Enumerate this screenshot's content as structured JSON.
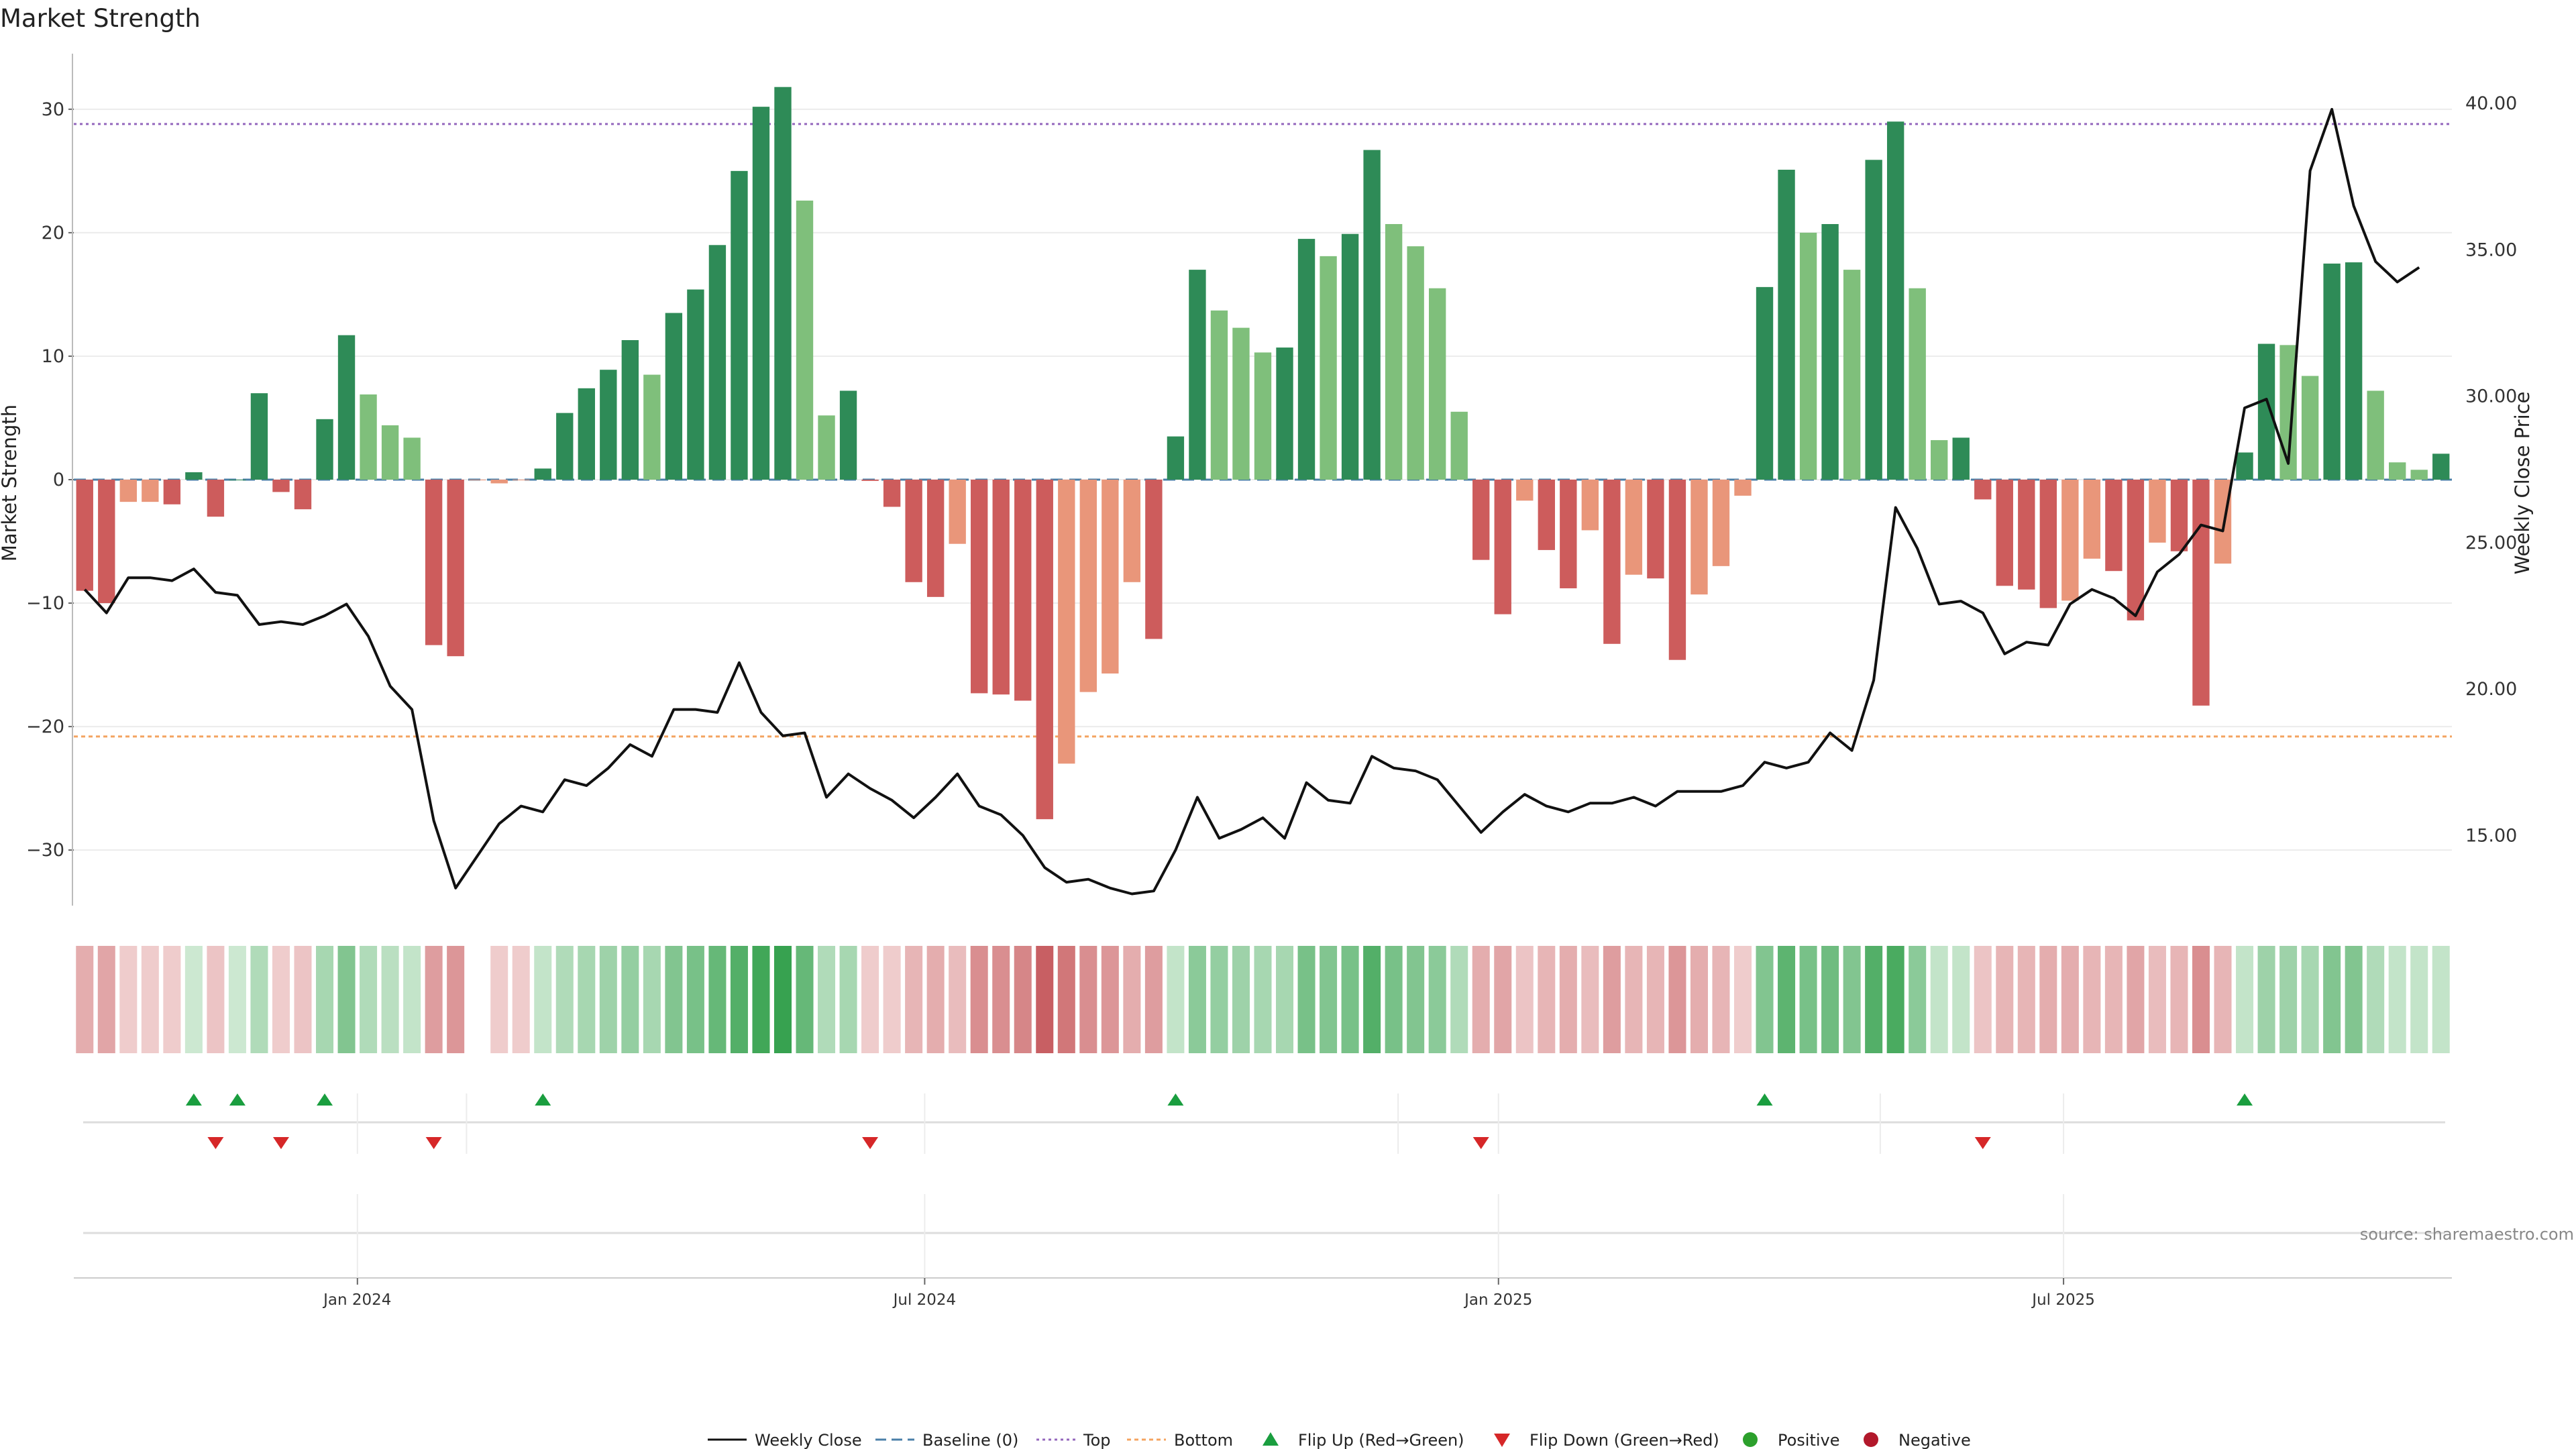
{
  "chart_data": {
    "type": "bar",
    "title": "Market Strength",
    "ylabel": "Market Strength",
    "y2label": "Weekly Close Price",
    "ylim": [
      -34.5,
      34.5
    ],
    "y2lim": [
      12.6,
      41.7
    ],
    "yticks": [
      -30,
      -20,
      -10,
      0,
      10,
      20,
      30
    ],
    "ytick_labels": [
      "−30",
      "−20",
      "−10",
      "0",
      "10",
      "20",
      "30"
    ],
    "y2ticks": [
      15,
      20,
      25,
      30,
      35,
      40
    ],
    "y2tick_labels": [
      "15.00",
      "20.00",
      "25.00",
      "30.00",
      "35.00",
      "40.00"
    ],
    "top_level": 28.8,
    "bottom_level": -20.8,
    "xticks": [
      {
        "label": "Jan 2024",
        "index": 12.5
      },
      {
        "label": "Jul 2024",
        "index": 38.5
      },
      {
        "label": "Jan 2025",
        "index": 64.8
      },
      {
        "label": "Jul 2025",
        "index": 90.7
      }
    ],
    "strength": [
      -9,
      -10,
      -1.8,
      -1.8,
      -2,
      0.6,
      -3,
      0,
      7,
      -1,
      -2.4,
      4.9,
      11.7,
      6.9,
      4.4,
      3.4,
      -13.4,
      -14.3,
      0,
      -0.3,
      0,
      0.9,
      5.4,
      7.4,
      8.9,
      11.3,
      8.5,
      13.5,
      15.4,
      19,
      25,
      30.2,
      31.8,
      22.6,
      5.2,
      7.2,
      -0.1,
      -2.2,
      -8.3,
      -9.5,
      -5.2,
      -17.3,
      -17.4,
      -17.9,
      -27.5,
      -23,
      -17.2,
      -15.7,
      -8.3,
      -12.9,
      3.5,
      17,
      13.7,
      12.3,
      10.3,
      10.7,
      19.5,
      18.1,
      19.9,
      26.7,
      20.7,
      18.9,
      15.5,
      5.5,
      -6.5,
      -10.9,
      -1.7,
      -5.7,
      -8.8,
      -4.1,
      -13.3,
      -7.7,
      -8,
      -14.6,
      -9.3,
      -7,
      -1.3,
      15.6,
      25.1,
      20,
      20.7,
      17,
      25.9,
      29,
      15.5,
      3.2,
      3.4,
      -1.6,
      -8.6,
      -8.9,
      -10.4,
      -9.8,
      -6.4,
      -7.4,
      -11.4,
      -5.1,
      -5.8,
      -18.3,
      -6.8,
      2.2,
      11,
      10.9,
      8.4,
      17.5,
      17.6,
      7.2,
      1.4,
      0.8,
      2.1
    ],
    "bar_tone": [
      "dr",
      "dr",
      "lr",
      "lr",
      "dr",
      "dg",
      "dr",
      "dg",
      "dg",
      "dr",
      "dr",
      "dg",
      "dg",
      "lg",
      "lg",
      "lg",
      "dr",
      "dr",
      "lr",
      "lr",
      "lr",
      "dg",
      "dg",
      "dg",
      "dg",
      "dg",
      "lg",
      "dg",
      "dg",
      "dg",
      "dg",
      "dg",
      "dg",
      "lg",
      "lg",
      "dg",
      "dr",
      "dr",
      "dr",
      "dr",
      "lr",
      "dr",
      "dr",
      "dr",
      "dr",
      "lr",
      "lr",
      "lr",
      "lr",
      "dr",
      "dg",
      "dg",
      "lg",
      "lg",
      "lg",
      "dg",
      "dg",
      "lg",
      "dg",
      "dg",
      "lg",
      "lg",
      "lg",
      "lg",
      "dr",
      "dr",
      "lr",
      "dr",
      "dr",
      "lr",
      "dr",
      "lr",
      "dr",
      "dr",
      "lr",
      "lr",
      "lr",
      "dg",
      "dg",
      "lg",
      "dg",
      "lg",
      "dg",
      "dg",
      "lg",
      "lg",
      "dg",
      "dr",
      "dr",
      "dr",
      "dr",
      "lr",
      "lr",
      "dr",
      "dr",
      "lr",
      "dr",
      "dr",
      "lr",
      "dg",
      "dg",
      "lg",
      "lg",
      "dg",
      "dg",
      "lg",
      "lg",
      "lg",
      "dg"
    ],
    "heat": [
      -0.35,
      -0.4,
      -0.15,
      -0.15,
      -0.15,
      0.15,
      -0.2,
      0.15,
      0.3,
      -0.15,
      -0.2,
      0.35,
      0.55,
      0.3,
      0.25,
      0.2,
      -0.45,
      -0.5,
      null,
      -0.15,
      -0.15,
      0.2,
      0.3,
      0.35,
      0.4,
      0.45,
      0.35,
      0.55,
      0.6,
      0.7,
      0.8,
      0.9,
      0.95,
      0.7,
      0.3,
      0.35,
      -0.15,
      -0.15,
      -0.3,
      -0.35,
      -0.25,
      -0.55,
      -0.55,
      -0.6,
      -0.85,
      -0.7,
      -0.55,
      -0.5,
      -0.35,
      -0.45,
      0.2,
      0.5,
      0.45,
      0.4,
      0.35,
      0.35,
      0.6,
      0.55,
      0.6,
      0.8,
      0.6,
      0.55,
      0.5,
      0.3,
      -0.35,
      -0.4,
      -0.2,
      -0.3,
      -0.35,
      -0.25,
      -0.45,
      -0.3,
      -0.3,
      -0.5,
      -0.35,
      -0.3,
      -0.15,
      0.55,
      0.75,
      0.6,
      0.65,
      0.55,
      0.8,
      0.85,
      0.5,
      0.2,
      0.2,
      -0.2,
      -0.3,
      -0.3,
      -0.35,
      -0.35,
      -0.3,
      -0.3,
      -0.4,
      -0.25,
      -0.3,
      -0.55,
      -0.3,
      0.2,
      0.4,
      0.4,
      0.35,
      0.55,
      0.55,
      0.3,
      0.2,
      0.2,
      0.2
    ],
    "close": [
      23.4,
      22.6,
      23.8,
      23.8,
      23.7,
      24.1,
      23.3,
      23.2,
      22.2,
      22.3,
      22.2,
      22.5,
      22.9,
      21.8,
      20.1,
      19.3,
      15.5,
      13.2,
      14.3,
      15.4,
      16.0,
      15.8,
      16.9,
      16.7,
      17.3,
      18.1,
      17.7,
      19.3,
      19.3,
      19.2,
      20.9,
      19.2,
      18.4,
      18.5,
      16.3,
      17.1,
      16.6,
      16.2,
      15.6,
      16.3,
      17.1,
      16.0,
      15.7,
      15.0,
      13.9,
      13.4,
      13.5,
      13.2,
      13.0,
      13.1,
      14.5,
      16.3,
      14.9,
      15.2,
      15.6,
      14.9,
      16.8,
      16.2,
      16.1,
      17.7,
      17.3,
      17.2,
      16.9,
      16.0,
      15.1,
      15.8,
      16.4,
      16.0,
      15.8,
      16.1,
      16.1,
      16.3,
      16.0,
      16.5,
      16.5,
      16.5,
      16.7,
      17.5,
      17.3,
      17.5,
      18.5,
      17.9,
      20.3,
      26.2,
      24.8,
      22.9,
      23.0,
      22.6,
      21.2,
      21.6,
      21.5,
      22.9,
      23.4,
      23.1,
      22.5,
      24.0,
      24.6,
      25.6,
      25.4,
      29.6,
      29.9,
      27.7,
      37.7,
      39.8,
      36.5,
      34.6,
      33.9,
      34.4
    ],
    "flip_up": [
      5,
      7,
      11,
      21,
      50,
      77,
      99
    ],
    "flip_down": [
      6,
      9,
      16,
      36,
      64,
      87
    ],
    "legend": [
      "Weekly Close",
      "Baseline (0)",
      "Top",
      "Bottom",
      "Flip Up (Red→Green)",
      "Flip Down (Green→Red)",
      "Positive",
      "Negative"
    ],
    "source_note": "source: sharemaestro.com",
    "colors": {
      "dark_green": "#2e8b57",
      "light_green": "#7fbf7b",
      "dark_red": "#cd5c5c",
      "light_red": "#e9967a",
      "line": "#111111",
      "baseline": "#4a7fa8",
      "top": "#9467bd",
      "bottom": "#f4a460",
      "flip_up": "#1a9e3f",
      "flip_down": "#d62728",
      "positive": "#2ca02c",
      "negative": "#b2182b"
    }
  }
}
